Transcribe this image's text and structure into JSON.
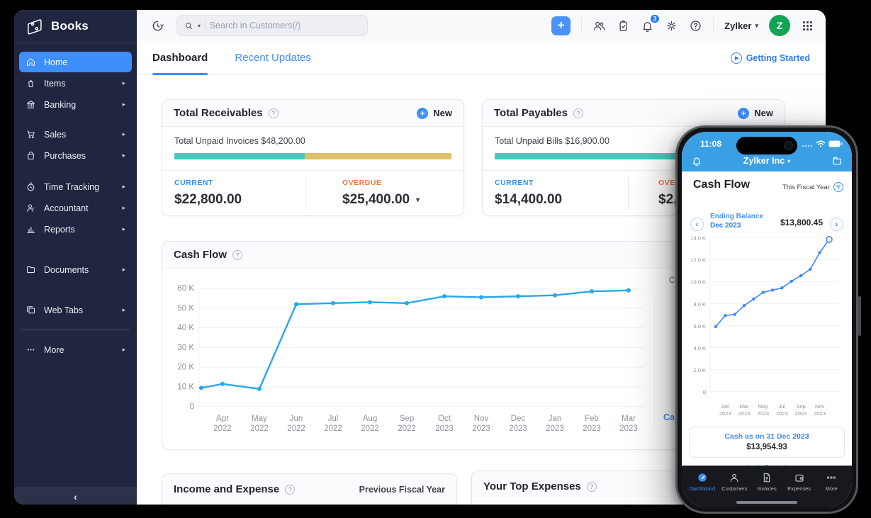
{
  "icons": {
    "plus": "+",
    "question_mark": "?",
    "dropdown_caret": "▾",
    "submenu_arrow": "▸",
    "collapse_chevron": "‹",
    "play_triangle": "▶",
    "chevron_left": "‹",
    "chevron_right": "›"
  },
  "sidebar": {
    "logo_text": "Books",
    "items": [
      {
        "label": "Home",
        "active": true
      },
      {
        "label": "Items"
      },
      {
        "label": "Banking"
      },
      {
        "label": "Sales"
      },
      {
        "label": "Purchases"
      },
      {
        "label": "Time Tracking"
      },
      {
        "label": "Accountant"
      },
      {
        "label": "Reports"
      },
      {
        "label": "Documents"
      },
      {
        "label": "Web Tabs"
      },
      {
        "label": "More"
      }
    ]
  },
  "topbar": {
    "search_placeholder": "Search in Customers(/)",
    "bell_badge": "3",
    "org_name": "Zylker",
    "avatar_letter": "Z"
  },
  "tabs": {
    "dashboard": "Dashboard",
    "recent_updates": "Recent Updates",
    "getting_started": "Getting Started"
  },
  "cards": {
    "receivables": {
      "title": "Total Receivables",
      "new_label": "New",
      "summary": "Total Unpaid Invoices $48,200.00",
      "current_label": "CURRENT",
      "current_value": "$22,800.00",
      "overdue_label": "OVERDUE",
      "overdue_value": "$25,400.00",
      "teal_percent": 47
    },
    "payables": {
      "title": "Total Payables",
      "new_label": "New",
      "summary": "Total Unpaid Bills $16,900.00",
      "current_label": "CURRENT",
      "current_value": "$14,400.00",
      "overdue_label": "OVERDUE",
      "overdue_value": "$2,",
      "teal_percent": 100
    },
    "cashflow": {
      "title": "Cash Flow",
      "period_fragment": "Current Fiscal Year",
      "cash_note_fragment": "Cash as on"
    },
    "income_expense": {
      "title": "Income and Expense",
      "filter": "Previous Fiscal Year"
    },
    "top_expenses": {
      "title": "Your Top Expenses"
    }
  },
  "phone": {
    "status_time": "11:08",
    "org": "Zylker Inc",
    "title": "Cash Flow",
    "period": "This Fiscal Year",
    "balance_label_line1": "Ending Balance",
    "balance_label_line2": "Dec 2023",
    "balance_value": "$13,800.45",
    "cash_note": "Cash as on 31 Dec",
    "cash_note_year": "2023",
    "cash_value": "$13,954.93",
    "nav": [
      {
        "label": "Dashboard",
        "active": true
      },
      {
        "label": "Customers"
      },
      {
        "label": "Invoices"
      },
      {
        "label": "Expenses"
      },
      {
        "label": "More"
      }
    ]
  },
  "chart_data": [
    {
      "id": "cashflow_desktop",
      "type": "line",
      "title": "Cash Flow",
      "unit": "thousand USD",
      "x_labels": [
        "",
        "Apr 2022",
        "May 2022",
        "Jun 2022",
        "Jul 2022",
        "Aug 2022",
        "Sep 2022",
        "Oct 2023",
        "Nov 2023",
        "Dec 2023",
        "Jan 2023",
        "Feb 2023",
        "Mar 2023"
      ],
      "values_k": [
        9.5,
        11.5,
        9,
        52,
        52.5,
        53,
        52.5,
        56,
        55.5,
        56,
        56.5,
        58.5,
        59
      ],
      "y_ticks": [
        "60 K",
        "50 K",
        "40 K",
        "30 K",
        "20 K",
        "10 K",
        "0"
      ],
      "ylim": [
        0,
        60
      ],
      "grid": true,
      "legend": "none",
      "line_color": "#2aa7e6",
      "last_point_open": false
    },
    {
      "id": "cashflow_phone",
      "type": "line",
      "title": "Cash Flow (mobile)",
      "unit": "thousand USD",
      "x_labels": [
        "",
        "Jan 2023",
        "",
        "Mar 2023",
        "",
        "May 2023",
        "",
        "Jul 2023",
        "",
        "Sep 2023",
        "",
        "Nov 2023",
        ""
      ],
      "values_k": [
        5.9,
        6.9,
        7.0,
        7.8,
        8.4,
        9.0,
        9.2,
        9.4,
        10.0,
        10.5,
        11.1,
        12.6,
        13.8
      ],
      "y_ticks": [
        "14.0 K",
        "12.0 K",
        "10.0 K",
        "8.0 K",
        "6.0 K",
        "4.0 K",
        "2.0 K",
        "0"
      ],
      "ylim": [
        0,
        14
      ],
      "grid": true,
      "legend": "none",
      "line_color": "#4286f5",
      "last_point_open": true
    }
  ],
  "colors": {
    "accent_blue": "#408dfb",
    "sidebar_bg": "#20263f",
    "teal": "#4cc8c0",
    "yellow": "#e0bf6a",
    "orange": "#f07a36",
    "current_blue": "#3095f2",
    "avatar_green": "#12a454",
    "phone_header_blue": "#3a9fe5",
    "phone_nav_bg": "#17191f"
  }
}
